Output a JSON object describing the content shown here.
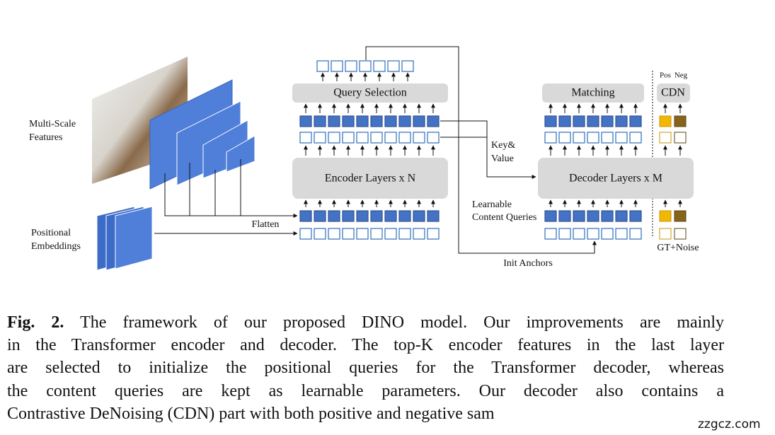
{
  "figure": {
    "multi_scale": [
      "Multi-Scale",
      "Features"
    ],
    "positional": [
      "Positional",
      "Embeddings"
    ],
    "flatten": "Flatten",
    "query_selection": "Query Selection",
    "encoder": "Encoder Layers x N",
    "key_value": [
      "Key&",
      "Value"
    ],
    "init_anchors": "Init Anchors",
    "matching": "Matching",
    "cdn": "CDN",
    "pos": "Pos",
    "neg": "Neg",
    "decoder": "Decoder Layers x M",
    "learnable": [
      "Learnable",
      "Content Queries"
    ],
    "gt_noise": "GT+Noise"
  },
  "caption": {
    "label": "Fig. 2.",
    "lines": [
      "The framework of our proposed DINO model. Our improvements are mainly",
      "in the Transformer encoder and decoder. The top-K encoder features in the last layer",
      "are selected to initialize the positional queries for the Transformer decoder, whereas",
      "the content queries are kept as learnable parameters. Our decoder also contains a",
      "Contrastive DeNoising (CDN) part with both positive and negative sam"
    ]
  },
  "watermark": "zzgcz.com"
}
